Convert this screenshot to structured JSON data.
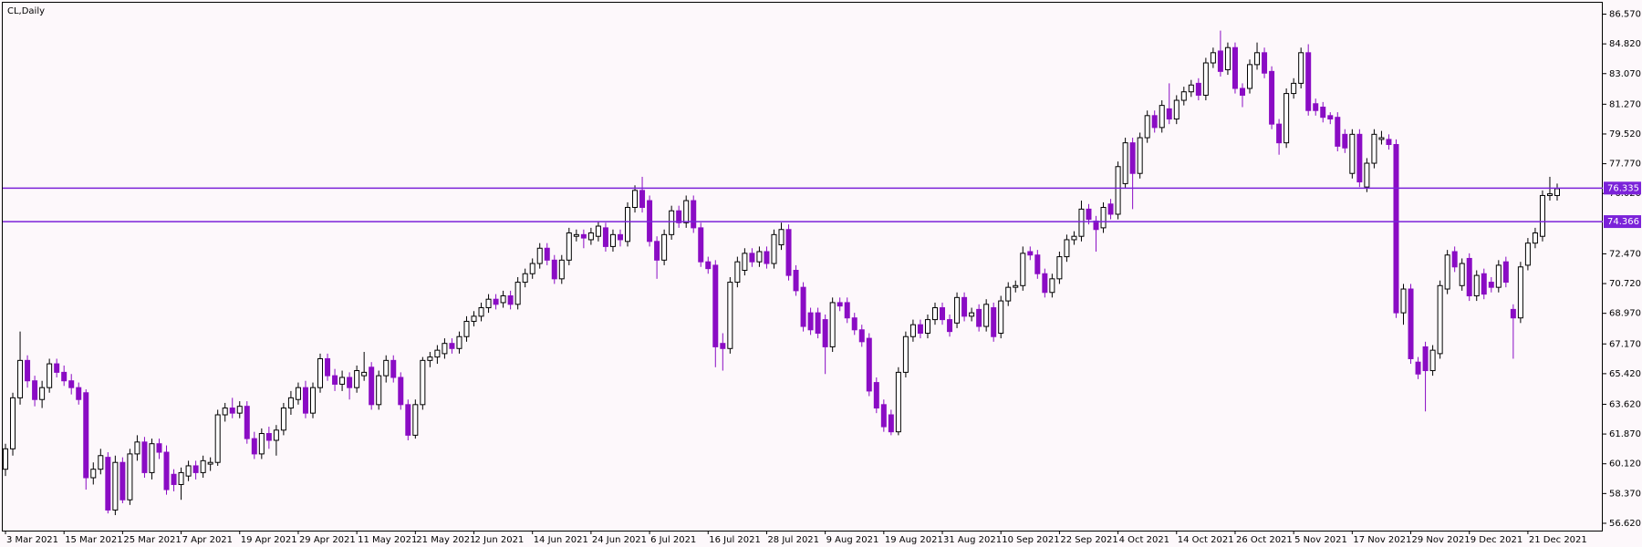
{
  "chart_data": {
    "type": "candlestick",
    "title": "CL,Daily",
    "background": "#fdf8fb",
    "up_color": "#ffffff",
    "down_color": "#8a0cc4",
    "outline_color": "#000000",
    "hline_color": "#7b22d9",
    "ylim": [
      56.19,
      87.24
    ],
    "yticks": [
      {
        "value": 86.57,
        "label": "86.570"
      },
      {
        "value": 84.82,
        "label": "84.820"
      },
      {
        "value": 83.07,
        "label": "83.070"
      },
      {
        "value": 81.27,
        "label": "81.270"
      },
      {
        "value": 79.52,
        "label": "79.520"
      },
      {
        "value": 77.77,
        "label": "77.770"
      },
      {
        "value": 76.02,
        "label": "76.020"
      },
      {
        "value": 72.47,
        "label": "72.470"
      },
      {
        "value": 70.72,
        "label": "70.720"
      },
      {
        "value": 68.97,
        "label": "68.970"
      },
      {
        "value": 67.17,
        "label": "67.170"
      },
      {
        "value": 65.42,
        "label": "65.420"
      },
      {
        "value": 63.62,
        "label": "63.620"
      },
      {
        "value": 61.87,
        "label": "61.870"
      },
      {
        "value": 60.12,
        "label": "60.120"
      },
      {
        "value": 58.37,
        "label": "58.370"
      },
      {
        "value": 56.62,
        "label": "56.620"
      }
    ],
    "hlines": [
      76.335,
      74.366
    ],
    "categories": [
      "3 Mar 2021",
      null,
      null,
      null,
      null,
      null,
      null,
      null,
      "15 Mar 2021",
      null,
      null,
      null,
      null,
      null,
      null,
      null,
      "25 Mar 2021",
      null,
      null,
      null,
      null,
      null,
      null,
      null,
      "7 Apr 2021",
      null,
      null,
      null,
      null,
      null,
      null,
      null,
      "19 Apr 2021",
      null,
      null,
      null,
      null,
      null,
      null,
      null,
      "29 Apr 2021",
      null,
      null,
      null,
      null,
      null,
      null,
      null,
      "11 May 2021",
      null,
      null,
      null,
      null,
      null,
      null,
      null,
      "21 May 2021",
      null,
      null,
      null,
      null,
      null,
      null,
      null,
      "2 Jun 2021",
      null,
      null,
      null,
      null,
      null,
      null,
      null,
      "14 Jun 2021",
      null,
      null,
      null,
      null,
      null,
      null,
      null,
      "24 Jun 2021",
      null,
      null,
      null,
      null,
      null,
      null,
      null,
      "6 Jul 2021",
      null,
      null,
      null,
      null,
      null,
      null,
      null,
      "16 Jul 2021",
      null,
      null,
      null,
      null,
      null,
      null,
      null,
      "28 Jul 2021",
      null,
      null,
      null,
      null,
      null,
      null,
      null,
      "9 Aug 2021",
      null,
      null,
      null,
      null,
      null,
      null,
      null,
      "19 Aug 2021",
      null,
      null,
      null,
      null,
      null,
      null,
      null,
      "31 Aug 2021",
      null,
      null,
      null,
      null,
      null,
      null,
      null,
      "10 Sep 2021",
      null,
      null,
      null,
      null,
      null,
      null,
      null,
      "22 Sep 2021",
      null,
      null,
      null,
      null,
      null,
      null,
      null,
      "4 Oct 2021",
      null,
      null,
      null,
      null,
      null,
      null,
      null,
      "14 Oct 2021",
      null,
      null,
      null,
      null,
      null,
      null,
      null,
      "26 Oct 2021",
      null,
      null,
      null,
      null,
      null,
      null,
      null,
      "5 Nov 2021",
      null,
      null,
      null,
      null,
      null,
      null,
      null,
      "17 Nov 2021",
      null,
      null,
      null,
      null,
      null,
      null,
      null,
      "29 Nov 2021",
      null,
      null,
      null,
      null,
      null,
      null,
      null,
      "9 Dec 2021",
      null,
      null,
      null,
      null,
      null,
      null,
      null,
      "21 Dec 2021",
      null,
      null,
      null,
      null
    ],
    "ohlc": [
      [
        59.8,
        61.3,
        59.4,
        61.0
      ],
      [
        61.0,
        64.3,
        60.6,
        64.0
      ],
      [
        64.0,
        67.9,
        63.6,
        66.2
      ],
      [
        66.2,
        66.5,
        64.6,
        65.0
      ],
      [
        65.0,
        65.3,
        63.5,
        63.9
      ],
      [
        63.9,
        65.0,
        63.4,
        64.6
      ],
      [
        64.6,
        66.3,
        64.3,
        66.0
      ],
      [
        66.0,
        66.3,
        65.2,
        65.5
      ],
      [
        65.5,
        65.9,
        64.7,
        65.0
      ],
      [
        65.0,
        65.4,
        64.2,
        64.6
      ],
      [
        64.6,
        64.9,
        63.6,
        63.9
      ],
      [
        64.3,
        64.5,
        58.6,
        59.3
      ],
      [
        59.3,
        60.2,
        58.9,
        59.8
      ],
      [
        59.8,
        61.0,
        59.5,
        60.6
      ],
      [
        60.5,
        60.8,
        57.2,
        57.4
      ],
      [
        57.4,
        60.6,
        57.1,
        60.2
      ],
      [
        60.2,
        60.5,
        57.8,
        58.0
      ],
      [
        58.0,
        61.0,
        57.7,
        60.7
      ],
      [
        60.7,
        61.8,
        60.3,
        61.4
      ],
      [
        61.4,
        61.7,
        59.3,
        59.6
      ],
      [
        59.6,
        61.6,
        59.2,
        61.3
      ],
      [
        61.3,
        61.6,
        60.4,
        60.8
      ],
      [
        60.8,
        61.2,
        58.3,
        58.6
      ],
      [
        59.5,
        59.8,
        58.5,
        58.9
      ],
      [
        58.9,
        59.9,
        58.0,
        59.6
      ],
      [
        59.4,
        60.3,
        59.1,
        60.0
      ],
      [
        60.0,
        60.3,
        59.2,
        59.6
      ],
      [
        59.6,
        60.6,
        59.3,
        60.3
      ],
      [
        60.1,
        60.5,
        59.7,
        60.2
      ],
      [
        60.2,
        63.3,
        60.0,
        63.0
      ],
      [
        63.0,
        63.7,
        62.6,
        63.4
      ],
      [
        63.4,
        64.0,
        62.8,
        63.1
      ],
      [
        63.1,
        63.8,
        62.8,
        63.5
      ],
      [
        63.5,
        63.8,
        61.3,
        61.6
      ],
      [
        61.6,
        62.0,
        60.4,
        60.7
      ],
      [
        60.7,
        62.2,
        60.4,
        61.9
      ],
      [
        61.9,
        62.3,
        61.0,
        61.5
      ],
      [
        61.5,
        62.4,
        60.6,
        62.1
      ],
      [
        62.1,
        63.7,
        61.8,
        63.4
      ],
      [
        63.4,
        64.4,
        63.0,
        64.0
      ],
      [
        63.9,
        64.9,
        63.6,
        64.6
      ],
      [
        64.6,
        65.0,
        62.8,
        63.1
      ],
      [
        63.1,
        64.9,
        62.8,
        64.6
      ],
      [
        64.6,
        66.6,
        64.3,
        66.3
      ],
      [
        66.3,
        66.6,
        65.0,
        65.3
      ],
      [
        65.3,
        65.7,
        64.4,
        64.8
      ],
      [
        64.8,
        65.6,
        64.4,
        65.2
      ],
      [
        65.2,
        65.5,
        63.9,
        64.6
      ],
      [
        64.6,
        65.9,
        64.3,
        65.6
      ],
      [
        65.3,
        66.7,
        65.0,
        65.5
      ],
      [
        65.8,
        66.1,
        63.3,
        63.6
      ],
      [
        63.6,
        65.6,
        63.3,
        65.3
      ],
      [
        65.3,
        66.5,
        64.9,
        66.2
      ],
      [
        66.2,
        66.5,
        64.9,
        65.2
      ],
      [
        65.2,
        65.5,
        63.3,
        63.6
      ],
      [
        63.6,
        63.9,
        61.5,
        61.8
      ],
      [
        61.8,
        63.9,
        61.6,
        63.6
      ],
      [
        63.6,
        66.4,
        63.3,
        66.2
      ],
      [
        66.2,
        66.7,
        65.8,
        66.4
      ],
      [
        66.4,
        67.1,
        66.0,
        66.8
      ],
      [
        66.6,
        67.5,
        66.3,
        67.2
      ],
      [
        67.2,
        67.5,
        66.6,
        66.9
      ],
      [
        66.9,
        67.9,
        66.6,
        67.6
      ],
      [
        67.6,
        68.8,
        67.3,
        68.5
      ],
      [
        68.5,
        69.1,
        68.2,
        68.8
      ],
      [
        68.8,
        69.6,
        68.5,
        69.3
      ],
      [
        69.3,
        70.1,
        69.0,
        69.8
      ],
      [
        69.8,
        70.1,
        69.2,
        69.5
      ],
      [
        69.6,
        70.3,
        69.3,
        70.0
      ],
      [
        70.0,
        70.3,
        69.2,
        69.5
      ],
      [
        69.5,
        71.1,
        69.2,
        70.8
      ],
      [
        70.8,
        71.6,
        70.5,
        71.3
      ],
      [
        71.3,
        72.2,
        71.0,
        71.9
      ],
      [
        71.9,
        73.1,
        71.6,
        72.8
      ],
      [
        72.8,
        73.1,
        71.8,
        72.1
      ],
      [
        72.1,
        72.4,
        70.7,
        71.0
      ],
      [
        71.0,
        72.4,
        70.7,
        72.1
      ],
      [
        72.1,
        74.0,
        71.8,
        73.7
      ],
      [
        73.5,
        73.9,
        73.2,
        73.6
      ],
      [
        73.6,
        73.9,
        72.8,
        73.4
      ],
      [
        73.3,
        74.0,
        73.0,
        73.7
      ],
      [
        73.5,
        74.4,
        73.2,
        74.1
      ],
      [
        74.0,
        74.3,
        72.6,
        72.9
      ],
      [
        72.9,
        73.9,
        72.6,
        73.6
      ],
      [
        73.6,
        73.9,
        72.9,
        73.3
      ],
      [
        73.2,
        75.5,
        72.9,
        75.2
      ],
      [
        75.2,
        76.5,
        74.9,
        76.2
      ],
      [
        76.2,
        77.0,
        74.9,
        75.2
      ],
      [
        75.6,
        75.9,
        72.9,
        73.2
      ],
      [
        73.2,
        73.5,
        71.0,
        72.1
      ],
      [
        72.1,
        73.9,
        71.8,
        73.6
      ],
      [
        73.6,
        75.3,
        73.3,
        75.0
      ],
      [
        75.0,
        75.3,
        74.0,
        74.3
      ],
      [
        74.3,
        75.9,
        74.0,
        75.6
      ],
      [
        75.6,
        75.9,
        73.7,
        74.0
      ],
      [
        74.0,
        74.3,
        71.7,
        72.0
      ],
      [
        72.0,
        72.3,
        71.3,
        71.6
      ],
      [
        71.8,
        72.1,
        65.8,
        67.0
      ],
      [
        67.2,
        67.8,
        65.6,
        66.9
      ],
      [
        66.9,
        71.1,
        66.6,
        70.8
      ],
      [
        70.8,
        72.3,
        70.5,
        72.0
      ],
      [
        71.5,
        72.8,
        71.2,
        72.5
      ],
      [
        72.5,
        72.8,
        71.7,
        72.0
      ],
      [
        72.0,
        72.9,
        71.7,
        72.6
      ],
      [
        72.6,
        72.9,
        71.6,
        71.9
      ],
      [
        71.9,
        73.9,
        71.6,
        73.6
      ],
      [
        73.0,
        74.3,
        72.7,
        73.9
      ],
      [
        73.9,
        74.2,
        70.9,
        71.2
      ],
      [
        71.5,
        71.8,
        70.0,
        70.3
      ],
      [
        70.5,
        70.8,
        67.9,
        68.2
      ],
      [
        69.0,
        69.3,
        67.7,
        68.0
      ],
      [
        69.0,
        69.3,
        67.5,
        67.8
      ],
      [
        68.6,
        68.9,
        65.4,
        67.0
      ],
      [
        67.0,
        69.9,
        66.7,
        69.6
      ],
      [
        69.6,
        69.9,
        69.1,
        69.4
      ],
      [
        69.6,
        69.9,
        68.4,
        68.7
      ],
      [
        68.7,
        69.0,
        67.7,
        68.0
      ],
      [
        68.0,
        68.3,
        67.0,
        67.3
      ],
      [
        67.5,
        67.8,
        64.1,
        64.4
      ],
      [
        64.9,
        65.2,
        63.1,
        63.4
      ],
      [
        63.6,
        63.9,
        62.0,
        62.3
      ],
      [
        63.0,
        63.3,
        61.8,
        62.0
      ],
      [
        62.0,
        65.8,
        61.8,
        65.5
      ],
      [
        65.5,
        67.9,
        65.2,
        67.6
      ],
      [
        67.6,
        68.6,
        67.3,
        68.3
      ],
      [
        68.3,
        68.6,
        67.5,
        67.8
      ],
      [
        67.8,
        68.9,
        67.5,
        68.6
      ],
      [
        68.6,
        69.6,
        68.3,
        69.3
      ],
      [
        69.3,
        69.6,
        68.3,
        68.6
      ],
      [
        68.6,
        68.9,
        67.6,
        67.9
      ],
      [
        68.4,
        70.2,
        68.1,
        69.9
      ],
      [
        69.9,
        70.2,
        68.5,
        68.8
      ],
      [
        68.8,
        69.3,
        68.5,
        69.0
      ],
      [
        69.2,
        69.5,
        67.9,
        68.2
      ],
      [
        68.2,
        69.8,
        67.9,
        69.5
      ],
      [
        69.3,
        69.6,
        67.3,
        67.6
      ],
      [
        67.8,
        70.0,
        67.5,
        69.7
      ],
      [
        69.7,
        70.8,
        69.4,
        70.5
      ],
      [
        70.5,
        70.9,
        70.2,
        70.6
      ],
      [
        70.6,
        72.9,
        70.3,
        72.5
      ],
      [
        72.6,
        72.9,
        72.1,
        72.4
      ],
      [
        72.4,
        72.7,
        71.0,
        71.3
      ],
      [
        71.3,
        71.6,
        69.9,
        70.2
      ],
      [
        70.2,
        71.3,
        69.9,
        71.0
      ],
      [
        71.0,
        72.6,
        70.7,
        72.3
      ],
      [
        72.3,
        73.6,
        72.0,
        73.3
      ],
      [
        73.3,
        73.8,
        73.0,
        73.5
      ],
      [
        73.5,
        75.6,
        73.2,
        75.1
      ],
      [
        75.1,
        75.4,
        74.2,
        74.5
      ],
      [
        74.4,
        74.7,
        72.6,
        73.9
      ],
      [
        74.0,
        75.5,
        73.7,
        75.2
      ],
      [
        75.4,
        75.7,
        74.5,
        74.8
      ],
      [
        74.8,
        77.9,
        74.5,
        77.6
      ],
      [
        76.6,
        79.3,
        76.3,
        79.0
      ],
      [
        79.0,
        79.3,
        75.1,
        77.2
      ],
      [
        77.2,
        79.6,
        76.9,
        79.3
      ],
      [
        79.3,
        80.9,
        79.0,
        80.6
      ],
      [
        80.6,
        80.9,
        79.6,
        79.9
      ],
      [
        79.9,
        81.5,
        79.6,
        81.2
      ],
      [
        81.0,
        82.5,
        80.1,
        80.4
      ],
      [
        80.4,
        81.8,
        80.1,
        81.5
      ],
      [
        81.5,
        82.3,
        81.2,
        82.0
      ],
      [
        82.0,
        82.7,
        81.7,
        82.4
      ],
      [
        82.5,
        82.8,
        81.5,
        81.8
      ],
      [
        81.8,
        84.0,
        81.5,
        83.7
      ],
      [
        83.7,
        84.6,
        83.4,
        84.3
      ],
      [
        84.4,
        85.6,
        82.9,
        83.2
      ],
      [
        83.3,
        84.9,
        83.0,
        84.6
      ],
      [
        84.6,
        84.9,
        81.9,
        82.2
      ],
      [
        82.2,
        82.5,
        81.1,
        81.8
      ],
      [
        82.2,
        83.9,
        81.9,
        83.6
      ],
      [
        83.6,
        84.9,
        83.3,
        84.3
      ],
      [
        84.3,
        84.6,
        82.8,
        83.1
      ],
      [
        83.2,
        83.5,
        79.8,
        80.1
      ],
      [
        80.1,
        80.4,
        78.3,
        79.0
      ],
      [
        79.0,
        82.2,
        78.7,
        81.9
      ],
      [
        81.9,
        82.8,
        81.6,
        82.5
      ],
      [
        82.5,
        84.6,
        82.2,
        84.3
      ],
      [
        84.3,
        84.8,
        80.6,
        80.9
      ],
      [
        81.3,
        81.6,
        80.6,
        80.9
      ],
      [
        81.1,
        81.4,
        80.2,
        80.5
      ],
      [
        80.6,
        80.8,
        80.1,
        80.4
      ],
      [
        80.5,
        80.8,
        78.5,
        78.8
      ],
      [
        79.5,
        79.8,
        78.4,
        78.7
      ],
      [
        77.2,
        79.8,
        76.9,
        79.5
      ],
      [
        79.5,
        79.8,
        76.4,
        76.7
      ],
      [
        76.4,
        78.1,
        76.1,
        77.8
      ],
      [
        77.8,
        79.8,
        77.5,
        79.5
      ],
      [
        79.2,
        79.7,
        78.9,
        79.3
      ],
      [
        79.2,
        79.5,
        78.6,
        78.9
      ],
      [
        78.9,
        79.2,
        68.7,
        69.0
      ],
      [
        69.0,
        70.7,
        68.3,
        70.4
      ],
      [
        70.4,
        70.7,
        66.0,
        66.3
      ],
      [
        66.1,
        66.4,
        65.1,
        65.4
      ],
      [
        67.0,
        67.3,
        63.2,
        65.6
      ],
      [
        65.6,
        67.1,
        65.3,
        66.8
      ],
      [
        66.6,
        70.9,
        66.3,
        70.6
      ],
      [
        70.4,
        72.7,
        70.1,
        72.4
      ],
      [
        72.6,
        72.9,
        71.4,
        71.7
      ],
      [
        70.6,
        72.2,
        70.3,
        71.9
      ],
      [
        72.2,
        72.5,
        69.7,
        70.0
      ],
      [
        70.0,
        71.5,
        69.7,
        71.2
      ],
      [
        71.3,
        71.6,
        69.8,
        70.1
      ],
      [
        70.8,
        71.1,
        70.2,
        70.5
      ],
      [
        70.5,
        72.1,
        70.2,
        71.8
      ],
      [
        72.0,
        72.3,
        70.5,
        70.8
      ],
      [
        69.2,
        69.5,
        66.3,
        68.7
      ],
      [
        68.7,
        72.0,
        68.4,
        71.7
      ],
      [
        71.8,
        73.4,
        71.5,
        73.1
      ],
      [
        73.1,
        74.0,
        72.8,
        73.7
      ],
      [
        73.5,
        76.2,
        73.2,
        75.9
      ],
      [
        75.9,
        77.0,
        75.6,
        76.0
      ],
      [
        75.9,
        76.6,
        75.6,
        76.3
      ]
    ]
  }
}
